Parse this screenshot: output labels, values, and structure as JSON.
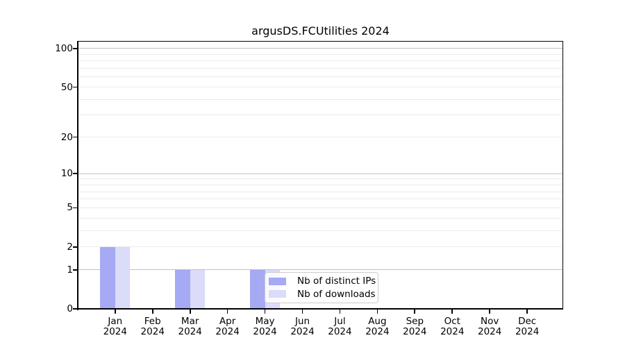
{
  "title": "argusDS.FCUtilities 2024",
  "chart_data": {
    "type": "bar",
    "title": "argusDS.FCUtilities 2024",
    "categories": [
      "Jan 2024",
      "Feb 2024",
      "Mar 2024",
      "Apr 2024",
      "May 2024",
      "Jun 2024",
      "Jul 2024",
      "Aug 2024",
      "Sep 2024",
      "Oct 2024",
      "Nov 2024",
      "Dec 2024"
    ],
    "series": [
      {
        "name": "Nb of distinct IPs",
        "color": "#a6a9f3",
        "values": [
          2,
          0,
          1,
          0,
          1,
          0,
          0,
          0,
          0,
          0,
          0,
          0
        ]
      },
      {
        "name": "Nb of downloads",
        "color": "#dadcf9",
        "values": [
          2,
          0,
          1,
          0,
          1,
          0,
          0,
          0,
          0,
          0,
          0,
          0
        ]
      }
    ],
    "xlabel": "",
    "ylabel": "",
    "yscale": "log1p",
    "ylim": [
      0,
      113
    ],
    "y_tick_labels": [
      100,
      50,
      20,
      10,
      5,
      2,
      1,
      0
    ],
    "y_major_gridlines": [
      1,
      10,
      100
    ],
    "y_minor_gridlines": [
      2,
      3,
      4,
      5,
      6,
      7,
      8,
      9,
      20,
      30,
      40,
      50,
      60,
      70,
      80,
      90
    ],
    "grid": true,
    "legend_position": "lower center"
  },
  "colors": {
    "major_grid": "#c0c0c0",
    "minor_grid": "#ebebeb",
    "spine": "#000000",
    "text": "#000000",
    "legend_border": "#cccccc"
  }
}
